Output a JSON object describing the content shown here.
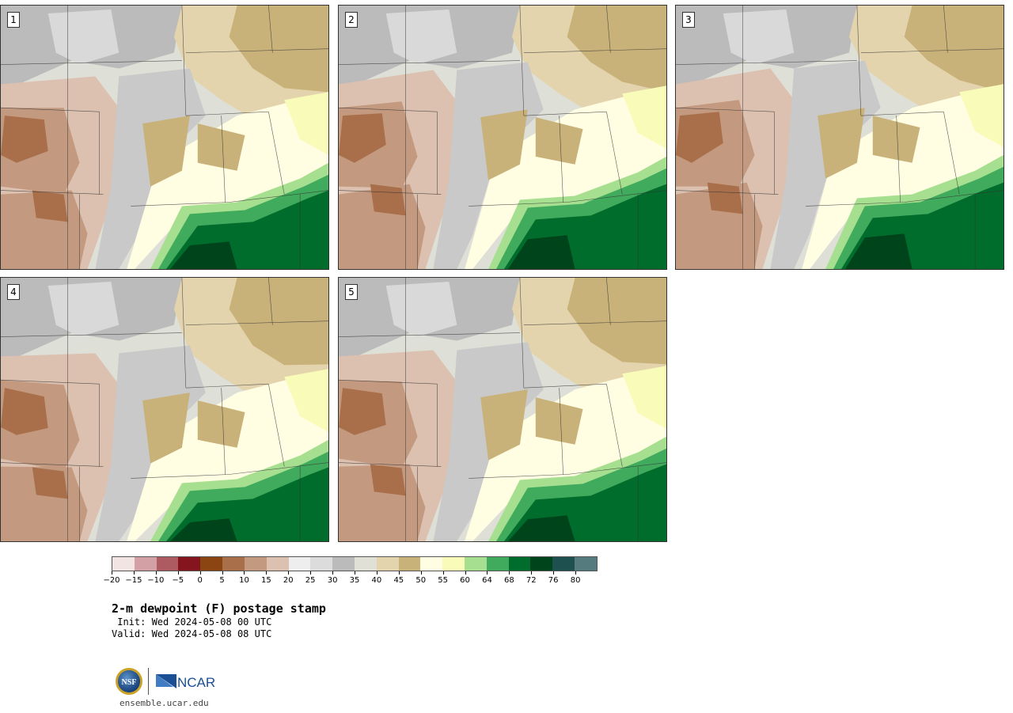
{
  "figure": {
    "title": "2-m dewpoint (F) postage stamp",
    "init_text": " Init: Wed 2024-05-08 00 UTC",
    "valid_text": "Valid: Wed 2024-05-08 08 UTC",
    "website": "ensemble.ucar.edu"
  },
  "panels": [
    {
      "label": "1"
    },
    {
      "label": "2"
    },
    {
      "label": "3"
    },
    {
      "label": "4"
    },
    {
      "label": "5"
    }
  ],
  "colorbar": {
    "tick_labels": [
      "−20",
      "−15",
      "−10",
      "−5",
      "0",
      "5",
      "10",
      "15",
      "20",
      "25",
      "30",
      "35",
      "40",
      "45",
      "50",
      "55",
      "60",
      "64",
      "68",
      "72",
      "76",
      "80"
    ],
    "colors": [
      "#f3e4e4",
      "#d3a0a6",
      "#ad5a60",
      "#84141e",
      "#8b4513",
      "#a96f4a",
      "#c39a80",
      "#dcc0b0",
      "#eeeeee",
      "#dcdcdc",
      "#bbbbbb",
      "#e0e0d6",
      "#e3d4ad",
      "#c9b27a",
      "#fffde2",
      "#f8fcb8",
      "#a6df8f",
      "#41ab5d",
      "#006d2c",
      "#00441b",
      "#1e5050",
      "#557b7f"
    ]
  },
  "map_colors": {
    "gray_high": "#bbbbbb",
    "gray_light": "#dedfd6",
    "tan_light": "#e3d4ad",
    "tan": "#c9b27a",
    "brown_light": "#dcc0b0",
    "brown": "#c39a80",
    "brown_dark": "#a96f4a",
    "rust": "#8b4513",
    "pale_yellow": "#fffde2",
    "light_yellow": "#f8fcb8",
    "light_green": "#a6df8f",
    "green": "#41ab5d",
    "dark_green": "#006d2c",
    "darkest_green": "#00441b"
  },
  "logos": {
    "nsf_text": "NSF",
    "ncar_text": "NCAR"
  }
}
